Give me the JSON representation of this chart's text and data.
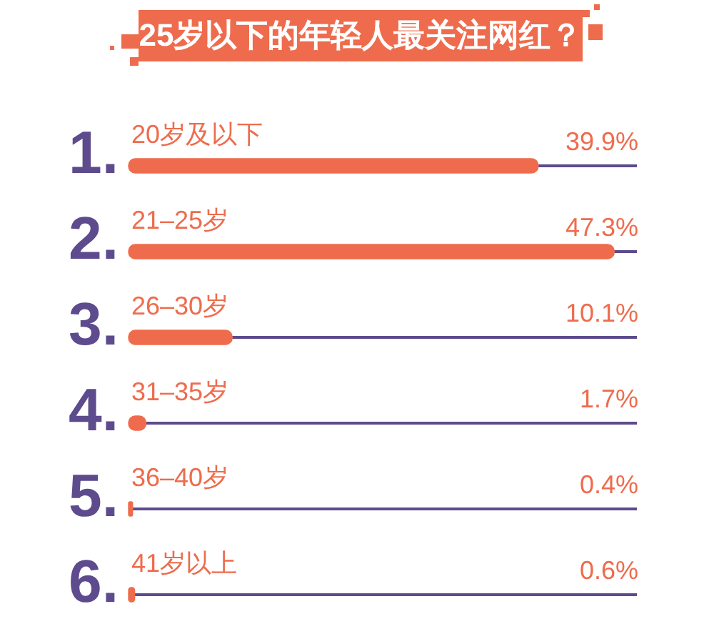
{
  "chart_data": {
    "type": "bar",
    "orientation": "horizontal",
    "title": "25岁以下的年轻人最关注网红？",
    "categories": [
      "20岁及以下",
      "21–25岁",
      "26–30岁",
      "31–35岁",
      "36–40岁",
      "41岁以上"
    ],
    "values": [
      39.9,
      47.3,
      10.1,
      1.7,
      0.4,
      0.6
    ],
    "value_labels": [
      "39.9%",
      "47.3%",
      "10.1%",
      "1.7%",
      "0.4%",
      "0.6%"
    ],
    "color": "#ee6c4d",
    "xlim": [
      0,
      49.5
    ],
    "annotations": [
      "1.",
      "2.",
      "3.",
      "4.",
      "5.",
      "6."
    ],
    "grid": "y",
    "legend": false,
    "tick_labels": "y"
  }
}
